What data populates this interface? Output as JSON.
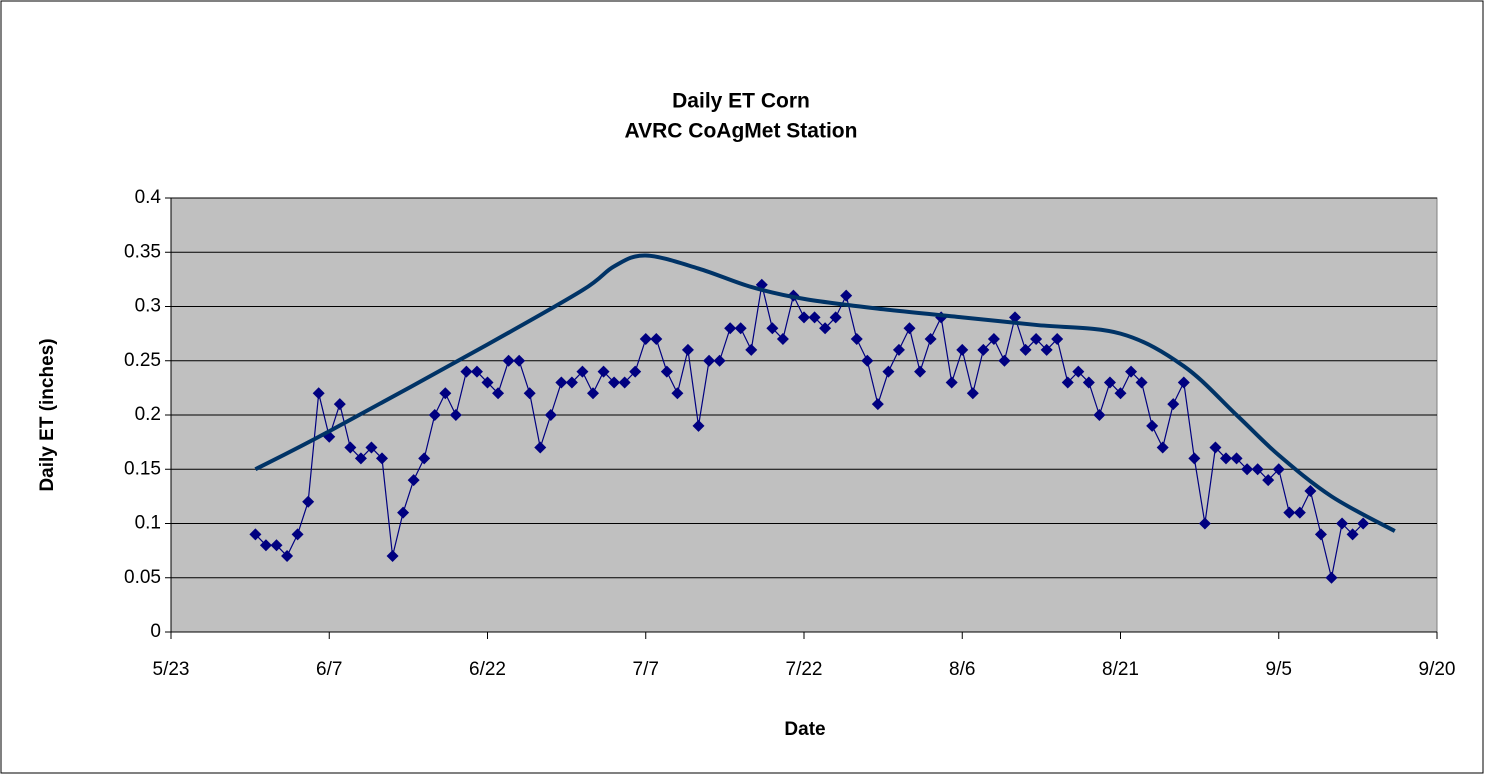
{
  "chart_data": {
    "type": "line",
    "title": "Daily ET Corn",
    "subtitle": "AVRC CoAgMet Station",
    "xlabel": "Date",
    "ylabel": "Daily ET (inches)",
    "xlim": [
      "5/23",
      "9/20"
    ],
    "xticks": [
      "5/23",
      "6/7",
      "6/22",
      "7/7",
      "7/22",
      "8/6",
      "8/21",
      "9/5",
      "9/20"
    ],
    "ylim": [
      0,
      0.4
    ],
    "yticks": [
      0,
      0.05,
      0.1,
      0.15,
      0.2,
      0.25,
      0.3,
      0.35,
      0.4
    ],
    "grid": true,
    "background": "#c0c0c0",
    "series": [
      {
        "color": "#000080",
        "marker": "diamond",
        "smooth": false,
        "x": [
          "5/31",
          "6/1",
          "6/2",
          "6/3",
          "6/4",
          "6/5",
          "6/6",
          "6/7",
          "6/8",
          "6/9",
          "6/10",
          "6/11",
          "6/12",
          "6/13",
          "6/14",
          "6/15",
          "6/16",
          "6/17",
          "6/18",
          "6/19",
          "6/20",
          "6/21",
          "6/22",
          "6/23",
          "6/24",
          "6/25",
          "6/26",
          "6/27",
          "6/28",
          "6/29",
          "6/30",
          "7/1",
          "7/2",
          "7/3",
          "7/4",
          "7/5",
          "7/6",
          "7/7",
          "7/8",
          "7/9",
          "7/10",
          "7/11",
          "7/12",
          "7/13",
          "7/14",
          "7/15",
          "7/16",
          "7/17",
          "7/18",
          "7/19",
          "7/20",
          "7/21",
          "7/22",
          "7/23",
          "7/24",
          "7/25",
          "7/26",
          "7/27",
          "7/28",
          "7/29",
          "7/30",
          "7/31",
          "8/1",
          "8/2",
          "8/3",
          "8/4",
          "8/5",
          "8/6",
          "8/7",
          "8/8",
          "8/9",
          "8/10",
          "8/11",
          "8/12",
          "8/13",
          "8/14",
          "8/15",
          "8/16",
          "8/17",
          "8/18",
          "8/19",
          "8/20",
          "8/21",
          "8/22",
          "8/23",
          "8/24",
          "8/25",
          "8/26",
          "8/27",
          "8/28",
          "8/29",
          "8/30",
          "8/31",
          "9/1",
          "9/2",
          "9/3",
          "9/4",
          "9/5",
          "9/6",
          "9/7",
          "9/8",
          "9/9",
          "9/10",
          "9/11",
          "9/12",
          "9/13"
        ],
        "values": [
          0.09,
          0.08,
          0.08,
          0.07,
          0.09,
          0.12,
          0.22,
          0.18,
          0.21,
          0.17,
          0.16,
          0.17,
          0.16,
          0.07,
          0.11,
          0.14,
          0.16,
          0.2,
          0.22,
          0.2,
          0.24,
          0.24,
          0.23,
          0.22,
          0.25,
          0.25,
          0.22,
          0.17,
          0.2,
          0.23,
          0.23,
          0.24,
          0.22,
          0.24,
          0.23,
          0.23,
          0.24,
          0.27,
          0.27,
          0.24,
          0.22,
          0.26,
          0.19,
          0.25,
          0.25,
          0.28,
          0.28,
          0.26,
          0.32,
          0.28,
          0.27,
          0.31,
          0.29,
          0.29,
          0.28,
          0.29,
          0.31,
          0.27,
          0.25,
          0.21,
          0.24,
          0.26,
          0.28,
          0.24,
          0.27,
          0.29,
          0.23,
          0.26,
          0.22,
          0.26,
          0.27,
          0.25,
          0.29,
          0.26,
          0.27,
          0.26,
          0.27,
          0.23,
          0.24,
          0.23,
          0.2,
          0.23,
          0.22,
          0.24,
          0.23,
          0.19,
          0.17,
          0.21,
          0.23,
          0.16,
          0.1,
          0.17,
          0.16,
          0.16,
          0.15,
          0.15,
          0.14,
          0.15,
          0.11,
          0.11,
          0.13,
          0.09,
          0.05,
          0.1,
          0.09,
          0.1
        ]
      },
      {
        "color": "#003366",
        "marker": "none",
        "smooth": true,
        "x": [
          "5/31",
          "6/7",
          "6/22",
          "7/1",
          "7/4",
          "7/7",
          "7/12",
          "7/17",
          "7/22",
          "7/29",
          "8/6",
          "8/13",
          "8/21",
          "8/27",
          "9/1",
          "9/5",
          "9/10",
          "9/16"
        ],
        "values": [
          0.15,
          0.185,
          0.265,
          0.315,
          0.337,
          0.347,
          0.335,
          0.318,
          0.307,
          0.298,
          0.29,
          0.283,
          0.275,
          0.245,
          0.2,
          0.163,
          0.125,
          0.093
        ]
      }
    ]
  }
}
